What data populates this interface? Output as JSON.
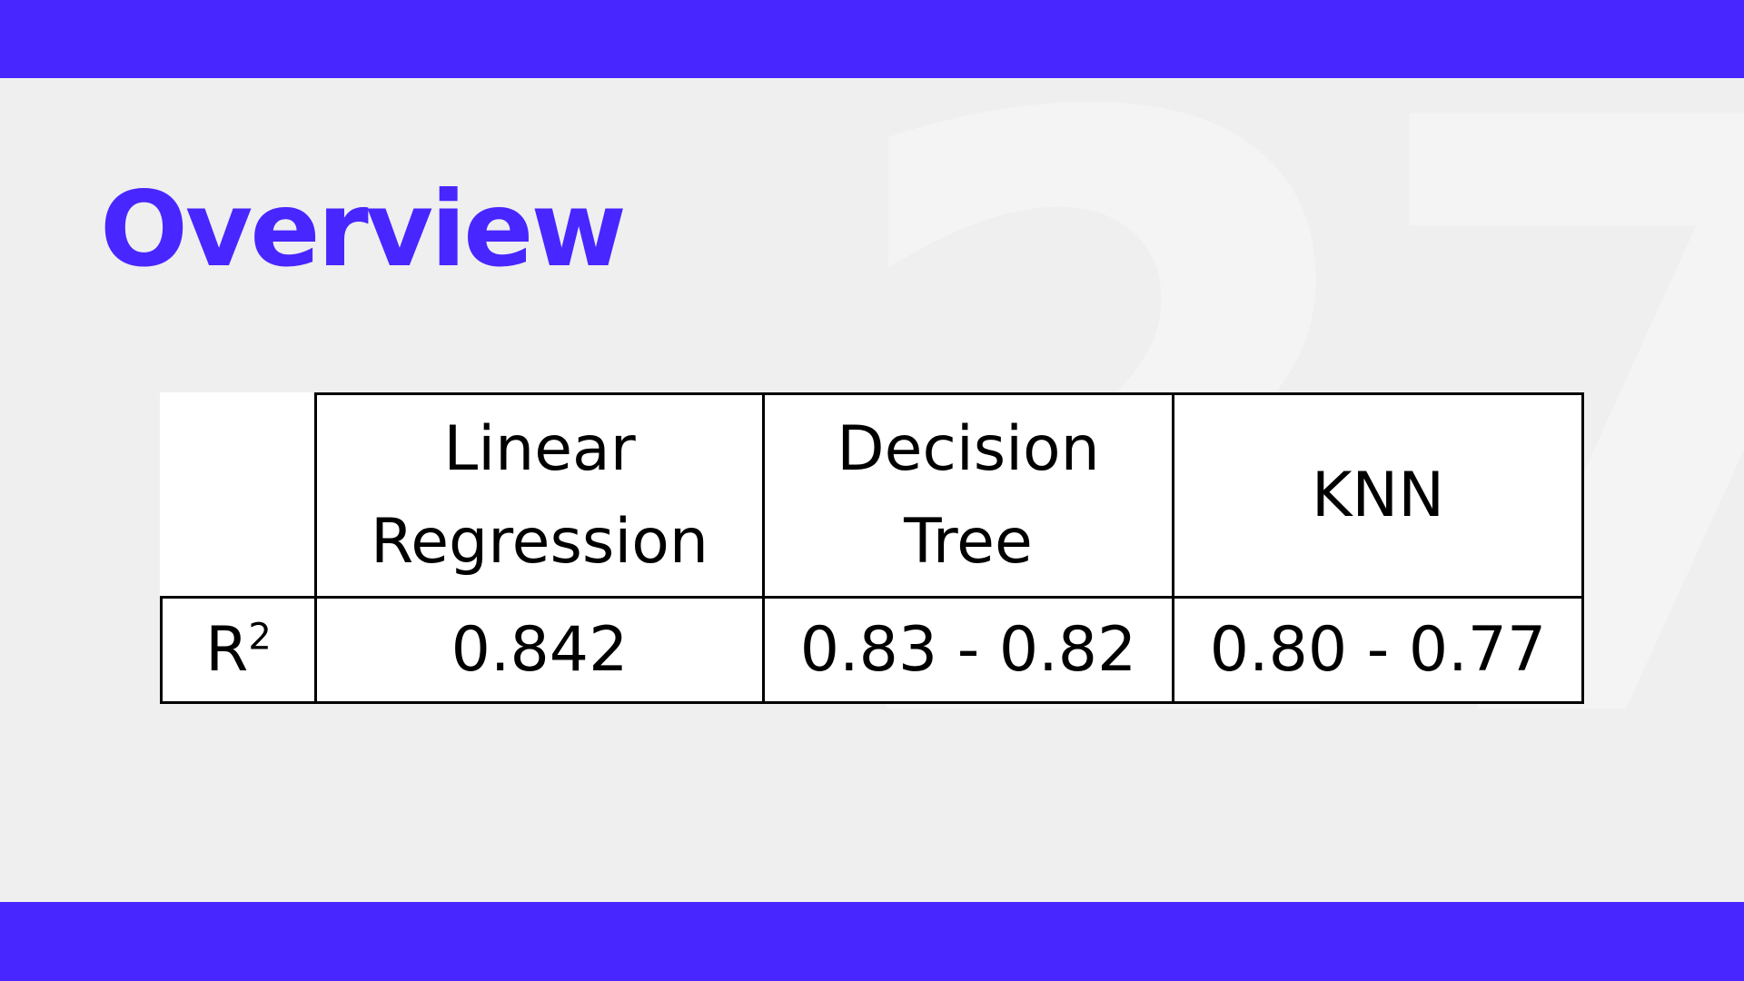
{
  "slide": {
    "title": "Overview",
    "watermark_number": "27",
    "colors": {
      "accent": "#4826ff",
      "background": "#efefef",
      "table_background": "#ffffff",
      "table_border": "#000000"
    }
  },
  "table": {
    "columns": [
      {
        "line1": "Linear",
        "line2": "Regression"
      },
      {
        "line1": "Decision",
        "line2": "Tree"
      },
      {
        "line1": "KNN",
        "line2": ""
      }
    ],
    "rows": [
      {
        "metric_base": "R",
        "metric_exponent": "2",
        "values": [
          "0.842",
          "0.83 - 0.82",
          "0.80 - 0.77"
        ]
      }
    ]
  }
}
